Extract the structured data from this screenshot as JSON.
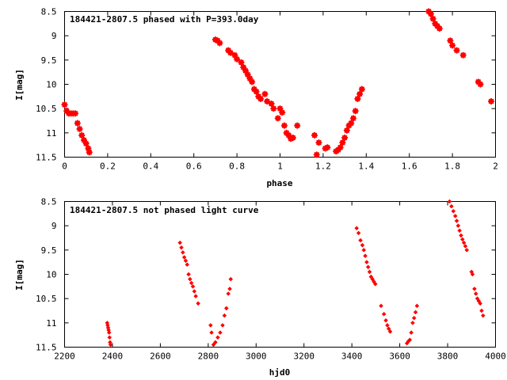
{
  "colors": {
    "points": "#ff0000",
    "frame": "#000000",
    "background": "#ffffff"
  },
  "chart_data": [
    {
      "type": "scatter",
      "title": "184421-2807.5 phased with P=393.0day",
      "xlabel": "phase",
      "ylabel": "I[mag]",
      "xlim": [
        0,
        2
      ],
      "ylim": [
        11.5,
        8.5
      ],
      "y_inverted": true,
      "xticks": [
        0,
        0.2,
        0.4,
        0.6,
        0.8,
        1,
        1.2,
        1.4,
        1.6,
        1.8,
        2
      ],
      "xtick_labels": [
        "0",
        "0.2",
        "0.4",
        "0.6",
        "0.8",
        "1",
        "1.2",
        "1.4",
        "1.6",
        "1.8",
        "2"
      ],
      "yticks": [
        8.5,
        9,
        9.5,
        10,
        10.5,
        11,
        11.5
      ],
      "ytick_labels": [
        "8.5",
        "9",
        "9.5",
        "10",
        "10.5",
        "11",
        "11.5"
      ],
      "marker": "star",
      "series": [
        {
          "x": [
            0.0,
            0.01,
            0.02,
            0.03,
            0.04,
            0.05,
            0.06,
            0.07,
            0.08,
            0.09,
            0.1,
            0.11,
            0.115,
            0.7,
            0.71,
            0.72,
            0.76,
            0.77,
            0.79,
            0.8,
            0.82,
            0.83,
            0.84,
            0.85,
            0.86,
            0.87,
            0.88,
            0.89,
            0.9,
            0.91,
            0.93,
            0.94,
            0.96,
            0.97,
            0.99,
            1.0,
            1.01,
            1.02,
            1.03,
            1.04,
            1.05,
            1.06,
            1.08,
            1.16,
            1.17,
            1.18,
            1.21,
            1.22,
            1.26,
            1.27,
            1.28,
            1.29,
            1.3,
            1.31,
            1.32,
            1.33,
            1.34,
            1.35,
            1.36,
            1.37,
            1.38,
            1.69,
            1.7,
            1.71,
            1.72,
            1.73,
            1.74,
            1.79,
            1.8,
            1.82,
            1.85,
            1.92,
            1.93,
            1.98
          ],
          "y": [
            10.42,
            10.55,
            10.6,
            10.6,
            10.6,
            10.6,
            10.8,
            10.92,
            11.05,
            11.15,
            11.22,
            11.32,
            11.4,
            9.08,
            9.1,
            9.15,
            9.3,
            9.35,
            9.4,
            9.48,
            9.55,
            9.65,
            9.72,
            9.8,
            9.88,
            9.95,
            10.1,
            10.15,
            10.25,
            10.3,
            10.2,
            10.35,
            10.4,
            10.5,
            10.7,
            10.5,
            10.58,
            10.85,
            11.0,
            11.05,
            11.12,
            11.1,
            10.85,
            11.05,
            11.45,
            11.2,
            11.32,
            11.3,
            11.38,
            11.35,
            11.3,
            11.2,
            11.1,
            10.95,
            10.85,
            10.8,
            10.7,
            10.55,
            10.3,
            10.2,
            10.1,
            8.5,
            8.55,
            8.65,
            8.75,
            8.8,
            8.85,
            9.1,
            9.2,
            9.3,
            9.4,
            9.95,
            10.0,
            10.35
          ]
        }
      ]
    },
    {
      "type": "scatter",
      "title": "184421-2807.5 not phased light curve",
      "xlabel": "hjd0",
      "ylabel": "I[mag]",
      "xlim": [
        2200,
        4000
      ],
      "ylim": [
        11.5,
        8.5
      ],
      "y_inverted": true,
      "xticks": [
        2200,
        2400,
        2600,
        2800,
        3000,
        3200,
        3400,
        3600,
        3800,
        4000
      ],
      "xtick_labels": [
        "2200",
        "2400",
        "2600",
        "2800",
        "3000",
        "3200",
        "3400",
        "3600",
        "3800",
        "4000"
      ],
      "yticks": [
        8.5,
        9,
        9.5,
        10,
        10.5,
        11,
        11.5
      ],
      "ytick_labels": [
        "8.5",
        "9",
        "9.5",
        "10",
        "10.5",
        "11",
        "11.5"
      ],
      "marker": "diamond",
      "series": [
        {
          "x": [
            2378,
            2380,
            2382,
            2384,
            2386,
            2388,
            2390,
            2392,
            2682,
            2688,
            2694,
            2700,
            2706,
            2712,
            2718,
            2724,
            2730,
            2736,
            2742,
            2748,
            2758,
            2810,
            2814,
            2822,
            2830,
            2840,
            2850,
            2860,
            2868,
            2876,
            2884,
            2890,
            2894,
            3420,
            3428,
            3436,
            3444,
            3450,
            3456,
            3462,
            3468,
            3474,
            3480,
            3486,
            3492,
            3498,
            3522,
            3534,
            3542,
            3548,
            3554,
            3560,
            3630,
            3636,
            3642,
            3648,
            3654,
            3660,
            3666,
            3672,
            3808,
            3816,
            3824,
            3832,
            3838,
            3844,
            3850,
            3856,
            3862,
            3868,
            3874,
            3880,
            3900,
            3904,
            3912,
            3918,
            3924,
            3930,
            3936,
            3942,
            3948
          ],
          "y": [
            11.0,
            11.05,
            11.1,
            11.15,
            11.2,
            11.3,
            11.4,
            11.45,
            9.35,
            9.45,
            9.55,
            9.65,
            9.72,
            9.8,
            10.0,
            10.1,
            10.18,
            10.25,
            10.35,
            10.45,
            10.6,
            11.05,
            11.2,
            11.45,
            11.4,
            11.3,
            11.2,
            11.05,
            10.85,
            10.7,
            10.4,
            10.3,
            10.1,
            9.05,
            9.15,
            9.3,
            9.4,
            9.5,
            9.62,
            9.75,
            9.85,
            9.95,
            10.05,
            10.1,
            10.15,
            10.2,
            10.65,
            10.82,
            10.95,
            11.05,
            11.12,
            11.18,
            11.42,
            11.38,
            11.35,
            11.2,
            11.0,
            10.9,
            10.78,
            10.65,
            8.5,
            8.6,
            8.7,
            8.8,
            8.9,
            9.0,
            9.1,
            9.2,
            9.28,
            9.35,
            9.42,
            9.5,
            9.95,
            10.0,
            10.3,
            10.4,
            10.5,
            10.55,
            10.6,
            10.75,
            10.85
          ]
        }
      ]
    }
  ]
}
